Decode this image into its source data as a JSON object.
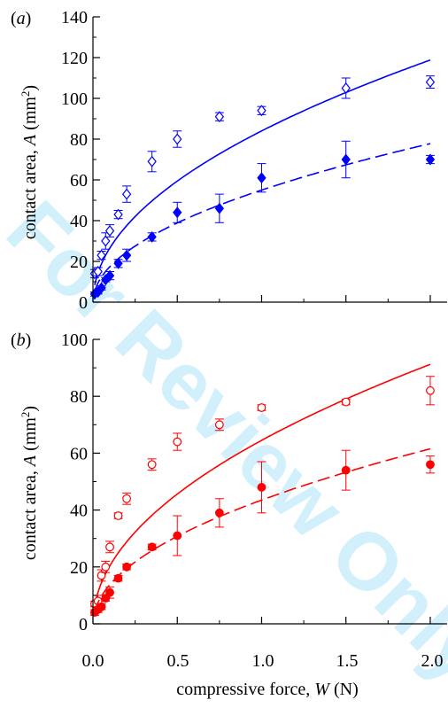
{
  "watermark": "For Review Only",
  "x_axis": {
    "label_prefix": "compressive force, ",
    "label_symbol": "W",
    "label_unit": " (N)",
    "tick_labels": [
      "0.0",
      "0.5",
      "1.0",
      "1.5",
      "2.0"
    ]
  },
  "y_axis": {
    "label_prefix": "contact area, ",
    "label_symbol": "A",
    "label_unit_base": " (mm",
    "label_unit_sup": "2",
    "label_unit_end": ")"
  },
  "chart_data": [
    {
      "type": "scatter",
      "panel": "(a)",
      "xlim": [
        0,
        2.1
      ],
      "ylim": [
        0,
        140
      ],
      "xticks": [
        0,
        0.5,
        1.0,
        1.5,
        2.0
      ],
      "yticks": [
        0,
        20,
        40,
        60,
        80,
        100,
        120,
        140
      ],
      "ytick_labels": [
        "0",
        "20",
        "40",
        "60",
        "80",
        "100",
        "120",
        "140"
      ],
      "color": "#0000ff",
      "series": [
        {
          "marker": "open-diamond",
          "x": [
            0.01,
            0.03,
            0.05,
            0.075,
            0.1,
            0.15,
            0.2,
            0.35,
            0.5,
            0.75,
            1.0,
            1.5,
            2.0
          ],
          "y": [
            14,
            15,
            23,
            30,
            35,
            43,
            53,
            69,
            80,
            91,
            94,
            105,
            108
          ],
          "err": [
            2,
            2,
            2,
            4,
            3,
            2,
            4,
            5,
            4,
            2,
            2,
            5,
            3
          ],
          "fit": {
            "style": "solid",
            "a": 84,
            "b": 0.5
          }
        },
        {
          "marker": "filled-diamond",
          "x": [
            0.01,
            0.03,
            0.05,
            0.075,
            0.1,
            0.15,
            0.2,
            0.35,
            0.5,
            0.75,
            1.0,
            1.5,
            2.0
          ],
          "y": [
            4,
            5,
            7,
            11,
            13,
            19,
            23,
            32,
            44,
            46,
            61,
            70,
            70
          ],
          "err": [
            1,
            1,
            1,
            1,
            2,
            2,
            3,
            2,
            5,
            7,
            7,
            9,
            2
          ],
          "fit": {
            "style": "dashed",
            "a": 55,
            "b": 0.5
          }
        }
      ]
    },
    {
      "type": "scatter",
      "panel": "(b)",
      "xlim": [
        0,
        2.1
      ],
      "ylim": [
        0,
        100
      ],
      "xticks": [
        0,
        0.5,
        1.0,
        1.5,
        2.0
      ],
      "yticks": [
        0,
        20,
        40,
        60,
        80,
        100
      ],
      "ytick_labels": [
        "0",
        "20",
        "40",
        "60",
        "80",
        "100"
      ],
      "color": "#ff0000",
      "series": [
        {
          "marker": "open-circle",
          "x": [
            0.01,
            0.03,
            0.05,
            0.075,
            0.1,
            0.15,
            0.2,
            0.35,
            0.5,
            0.75,
            1.0,
            1.5,
            2.0
          ],
          "y": [
            7,
            8,
            17,
            20,
            27,
            38,
            44,
            56,
            64,
            70,
            76,
            78,
            82
          ],
          "err": [
            1,
            2,
            2,
            2,
            2,
            1,
            2,
            2,
            3,
            2,
            1,
            1,
            5
          ],
          "fit": {
            "style": "solid",
            "a": 64.5,
            "b": 0.5
          }
        },
        {
          "marker": "filled-circle",
          "x": [
            0.01,
            0.03,
            0.05,
            0.075,
            0.1,
            0.15,
            0.2,
            0.35,
            0.5,
            0.75,
            1.0,
            1.5,
            2.0
          ],
          "y": [
            4,
            5,
            6,
            9,
            11,
            16,
            20,
            27,
            31,
            39,
            48,
            54,
            56
          ],
          "err": [
            1,
            1,
            1,
            1,
            2,
            1,
            1,
            1,
            7,
            5,
            9,
            7,
            3
          ],
          "fit": {
            "style": "dashed",
            "a": 43.5,
            "b": 0.5
          }
        }
      ]
    }
  ]
}
